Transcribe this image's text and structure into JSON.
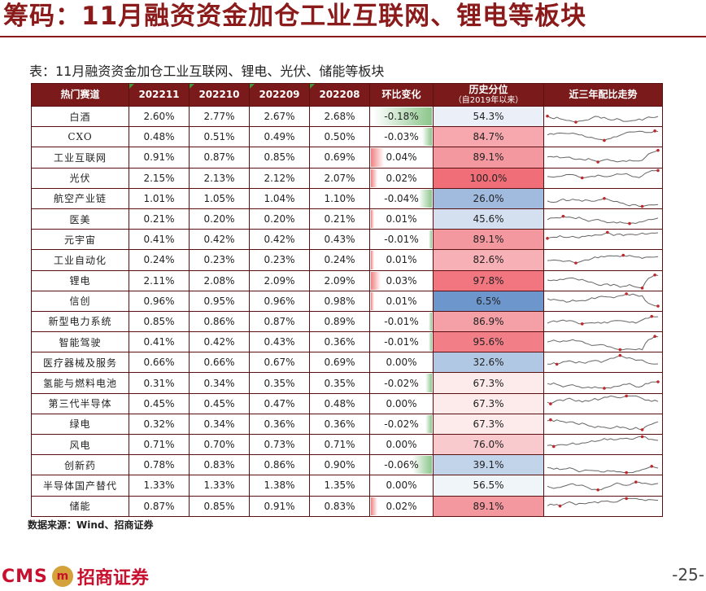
{
  "title": "筹码：11月融资资金加仓工业互联网、锂电等板块",
  "caption": "表：11月融资资金加仓工业互联网、锂电、光伏、储能等板块",
  "headers": {
    "name": "热门赛道",
    "m1": "202211",
    "m2": "202210",
    "m3": "202209",
    "m4": "202208",
    "change": "环比变化",
    "percentile_line1": "历史分位",
    "percentile_line2": "（自2019年以来）",
    "trend": "近三年配比走势"
  },
  "rows": [
    {
      "name": "白酒",
      "m1": "2.60%",
      "m2": "2.77%",
      "m3": "2.67%",
      "m4": "2.68%",
      "change": "-0.18%",
      "change_value": -0.18,
      "percentile": "54.3%",
      "percentile_value": 54.3
    },
    {
      "name": "CXO",
      "m1": "0.48%",
      "m2": "0.51%",
      "m3": "0.49%",
      "m4": "0.50%",
      "change": "-0.03%",
      "change_value": -0.03,
      "percentile": "84.7%",
      "percentile_value": 84.7
    },
    {
      "name": "工业互联网",
      "m1": "0.91%",
      "m2": "0.87%",
      "m3": "0.85%",
      "m4": "0.69%",
      "change": "0.04%",
      "change_value": 0.04,
      "percentile": "89.1%",
      "percentile_value": 89.1
    },
    {
      "name": "光伏",
      "m1": "2.15%",
      "m2": "2.13%",
      "m3": "2.12%",
      "m4": "2.07%",
      "change": "0.02%",
      "change_value": 0.02,
      "percentile": "100.0%",
      "percentile_value": 100.0
    },
    {
      "name": "航空产业链",
      "m1": "1.01%",
      "m2": "1.05%",
      "m3": "1.04%",
      "m4": "1.10%",
      "change": "-0.04%",
      "change_value": -0.04,
      "percentile": "26.0%",
      "percentile_value": 26.0
    },
    {
      "name": "医美",
      "m1": "0.21%",
      "m2": "0.20%",
      "m3": "0.20%",
      "m4": "0.21%",
      "change": "0.01%",
      "change_value": 0.01,
      "percentile": "45.6%",
      "percentile_value": 45.6
    },
    {
      "name": "元宇宙",
      "m1": "0.41%",
      "m2": "0.42%",
      "m3": "0.42%",
      "m4": "0.43%",
      "change": "-0.01%",
      "change_value": -0.01,
      "percentile": "89.1%",
      "percentile_value": 89.1
    },
    {
      "name": "工业自动化",
      "m1": "0.24%",
      "m2": "0.23%",
      "m3": "0.23%",
      "m4": "0.24%",
      "change": "0.01%",
      "change_value": 0.01,
      "percentile": "82.6%",
      "percentile_value": 82.6
    },
    {
      "name": "锂电",
      "m1": "2.11%",
      "m2": "2.08%",
      "m3": "2.09%",
      "m4": "2.09%",
      "change": "0.03%",
      "change_value": 0.03,
      "percentile": "97.8%",
      "percentile_value": 97.8
    },
    {
      "name": "信创",
      "m1": "0.96%",
      "m2": "0.95%",
      "m3": "0.96%",
      "m4": "0.98%",
      "change": "0.01%",
      "change_value": 0.01,
      "percentile": "6.5%",
      "percentile_value": 6.5
    },
    {
      "name": "新型电力系统",
      "m1": "0.85%",
      "m2": "0.86%",
      "m3": "0.87%",
      "m4": "0.89%",
      "change": "-0.01%",
      "change_value": -0.01,
      "percentile": "86.9%",
      "percentile_value": 86.9
    },
    {
      "name": "智能驾驶",
      "m1": "0.41%",
      "m2": "0.42%",
      "m3": "0.43%",
      "m4": "0.36%",
      "change": "-0.01%",
      "change_value": -0.01,
      "percentile": "95.6%",
      "percentile_value": 95.6
    },
    {
      "name": "医疗器械及服务",
      "m1": "0.66%",
      "m2": "0.66%",
      "m3": "0.67%",
      "m4": "0.69%",
      "change": "0.00%",
      "change_value": 0.0,
      "percentile": "32.6%",
      "percentile_value": 32.6
    },
    {
      "name": "氢能与燃料电池",
      "m1": "0.31%",
      "m2": "0.34%",
      "m3": "0.35%",
      "m4": "0.35%",
      "change": "-0.02%",
      "change_value": -0.02,
      "percentile": "67.3%",
      "percentile_value": 67.3
    },
    {
      "name": "第三代半导体",
      "m1": "0.45%",
      "m2": "0.45%",
      "m3": "0.47%",
      "m4": "0.48%",
      "change": "0.00%",
      "change_value": 0.0,
      "percentile": "67.3%",
      "percentile_value": 67.3
    },
    {
      "name": "绿电",
      "m1": "0.32%",
      "m2": "0.34%",
      "m3": "0.36%",
      "m4": "0.36%",
      "change": "-0.02%",
      "change_value": -0.02,
      "percentile": "67.3%",
      "percentile_value": 67.3
    },
    {
      "name": "风电",
      "m1": "0.71%",
      "m2": "0.70%",
      "m3": "0.73%",
      "m4": "0.71%",
      "change": "0.00%",
      "change_value": 0.0,
      "percentile": "76.0%",
      "percentile_value": 76.0
    },
    {
      "name": "创新药",
      "m1": "0.78%",
      "m2": "0.83%",
      "m3": "0.86%",
      "m4": "0.90%",
      "change": "-0.06%",
      "change_value": -0.06,
      "percentile": "39.1%",
      "percentile_value": 39.1
    },
    {
      "name": "半导体国产替代",
      "m1": "1.33%",
      "m2": "1.33%",
      "m3": "1.38%",
      "m4": "1.35%",
      "change": "0.00%",
      "change_value": 0.0,
      "percentile": "56.5%",
      "percentile_value": 56.5
    },
    {
      "name": "储能",
      "m1": "0.87%",
      "m2": "0.85%",
      "m3": "0.91%",
      "m4": "0.83%",
      "change": "0.02%",
      "change_value": 0.02,
      "percentile": "89.1%",
      "percentile_value": 89.1
    }
  ],
  "colors": {
    "brand_dark_red": "#7b1a1a",
    "positive_bar": "#f08080",
    "negative_bar": "#8cc68c",
    "high_percentile": "#f06e78",
    "low_percentile": "#5b8ac6",
    "sparkline": "#666666",
    "sparkline_marker": "#c0282d"
  },
  "source": "数据来源：Wind、招商证券",
  "logo": {
    "latin": "CMS",
    "chinese": "招商证券",
    "emblem_text": "m"
  },
  "page_number": "-25-"
}
